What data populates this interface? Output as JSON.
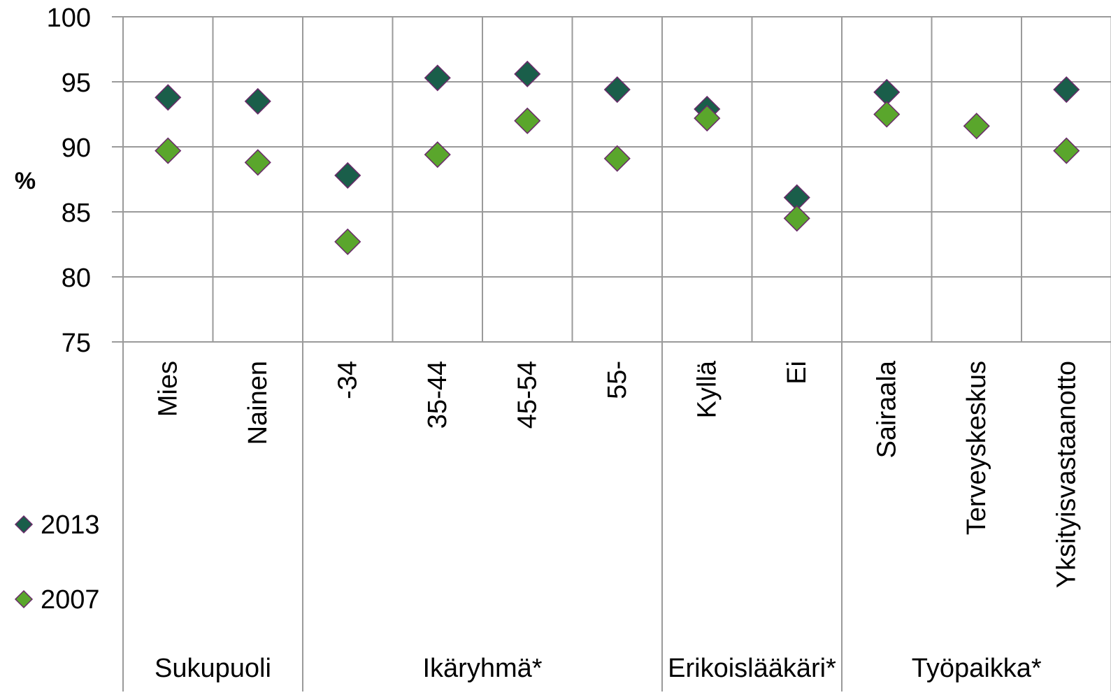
{
  "chart_data": {
    "type": "scatter",
    "ylabel": "%",
    "ylim": [
      75,
      100
    ],
    "y_ticks": [
      "100",
      "95",
      "90",
      "85",
      "80",
      "75"
    ],
    "y_tick_values": [
      100,
      95,
      90,
      85,
      80,
      75
    ],
    "grid": true,
    "categories": [
      "Mies",
      "Nainen",
      "-34",
      "35-44",
      "45-54",
      "55-",
      "Kyllä",
      "Ei",
      "Sairaala",
      "Terveyskeskus",
      "Yksityisvastaanotto"
    ],
    "groups": [
      {
        "label": "Sukupuoli",
        "start": 0,
        "count": 2
      },
      {
        "label": "Ikäryhmä*",
        "start": 2,
        "count": 4
      },
      {
        "label": "Erikoislääkäri*",
        "start": 6,
        "count": 2
      },
      {
        "label": "Työpaikka*",
        "start": 8,
        "count": 3
      }
    ],
    "series": [
      {
        "name": "2013",
        "color": "#1a5e4a",
        "values": [
          93.8,
          93.5,
          87.8,
          95.3,
          95.6,
          94.4,
          92.9,
          86.1,
          94.2,
          null,
          94.4
        ]
      },
      {
        "name": "2007",
        "color": "#5aa62c",
        "values": [
          89.7,
          88.8,
          82.7,
          89.4,
          92.0,
          89.1,
          92.2,
          84.5,
          92.5,
          91.6,
          89.7
        ]
      }
    ],
    "legend": {
      "position": "left"
    }
  }
}
